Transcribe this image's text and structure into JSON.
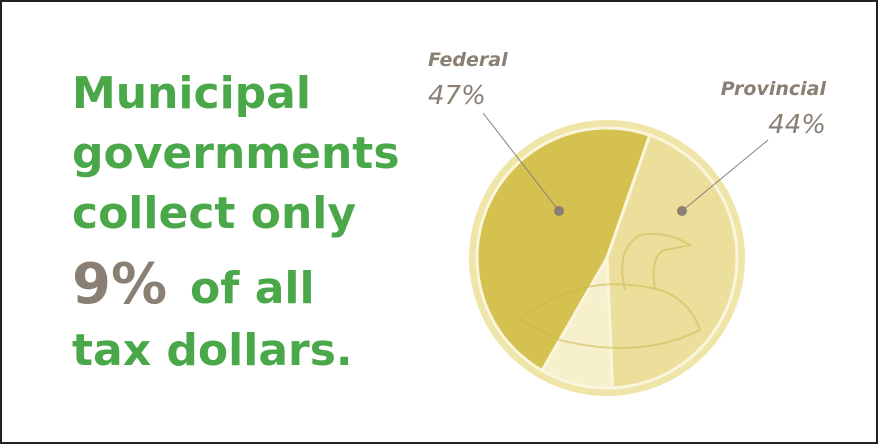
{
  "chart_data": {
    "type": "pie",
    "headline": [
      "Municipal",
      "governments",
      "collect only"
    ],
    "headline_tail": [
      "of all",
      "tax dollars."
    ],
    "categories": [
      "Federal",
      "Provincial",
      null
    ],
    "values": [
      47,
      44,
      9
    ],
    "value_labels": [
      "47%",
      "44%",
      "9%"
    ],
    "colors": [
      "#d4c14f",
      "#ecdf9c",
      "#f7f0cd"
    ]
  }
}
